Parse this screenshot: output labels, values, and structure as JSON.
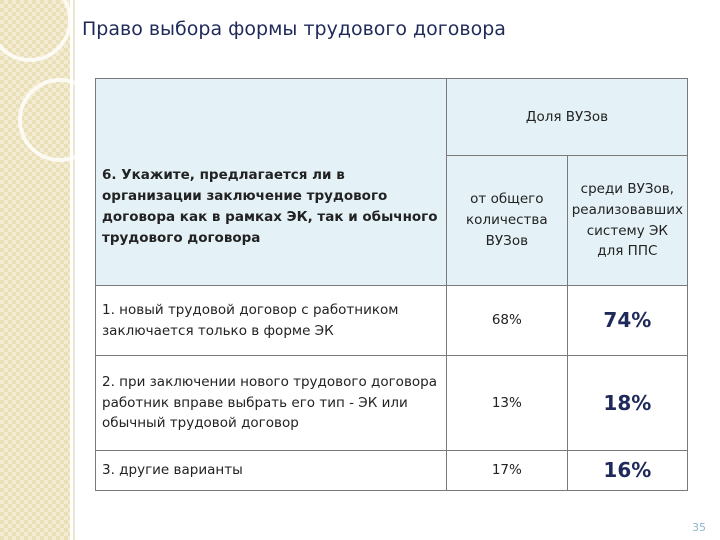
{
  "title": "Право выбора формы трудового договора",
  "table": {
    "header": {
      "question": "6. Укажите, предлагается ли в организации заключение трудового договора как в рамках ЭК, так и обычного трудового договора",
      "group": "Доля ВУЗов",
      "columns": [
        "от общего количества ВУЗов",
        "среди ВУЗов, реализовавших систему ЭК для ППС"
      ]
    },
    "rows": [
      [
        "1. новый трудовой договор с работником заключается только в форме ЭК",
        "68%",
        "74%"
      ],
      [
        "2. при заключении нового трудового договора работник вправе выбрать его тип - ЭК или обычный трудовой договор",
        "13%",
        "18%"
      ],
      [
        "3. другие варианты",
        "17%",
        "16%"
      ]
    ]
  },
  "page_number": "35"
}
